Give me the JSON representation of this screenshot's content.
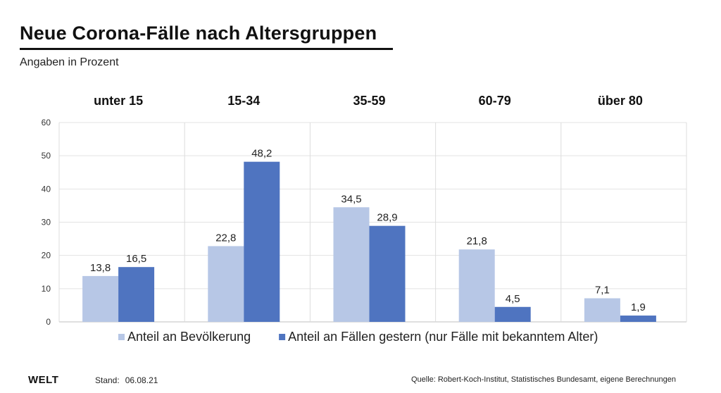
{
  "header": {
    "title": "Neue Corona-Fälle nach Altersgruppen",
    "subtitle": "Angaben in Prozent"
  },
  "chart_data": {
    "type": "bar",
    "title": "Neue Corona-Fälle nach Altersgruppen",
    "subtitle": "Angaben in Prozent",
    "categories": [
      "unter 15",
      "15-34",
      "35-59",
      "60-79",
      "über 80"
    ],
    "series": [
      {
        "name": "Anteil an Bevölkerung",
        "values": [
          13.8,
          22.8,
          34.5,
          21.8,
          7.1
        ],
        "labels": [
          "13,8",
          "22,8",
          "34,5",
          "21,8",
          "7,1"
        ],
        "color": "#b7c7e6"
      },
      {
        "name": "Anteil an Fällen gestern (nur Fälle mit bekanntem Alter)",
        "values": [
          16.5,
          48.2,
          28.9,
          4.5,
          1.9
        ],
        "labels": [
          "16,5",
          "48,2",
          "28,9",
          "4,5",
          "1,9"
        ],
        "color": "#4f74c0"
      }
    ],
    "ylim": [
      0,
      60
    ],
    "yticks": [
      0,
      10,
      20,
      30,
      40,
      50,
      60
    ],
    "grid": true,
    "legend": "bottom",
    "xlabel": "",
    "ylabel": ""
  },
  "footer": {
    "logo": "WELT",
    "stand_label": "Stand:",
    "stand_date": "06.08.21",
    "source": "Quelle: Robert-Koch-Institut, Statistisches Bundesamt, eigene Berechnungen"
  },
  "colors": {
    "gridline": "#e3e3e3",
    "separator": "#dcdcdc",
    "axis": "#bfbfbf"
  }
}
